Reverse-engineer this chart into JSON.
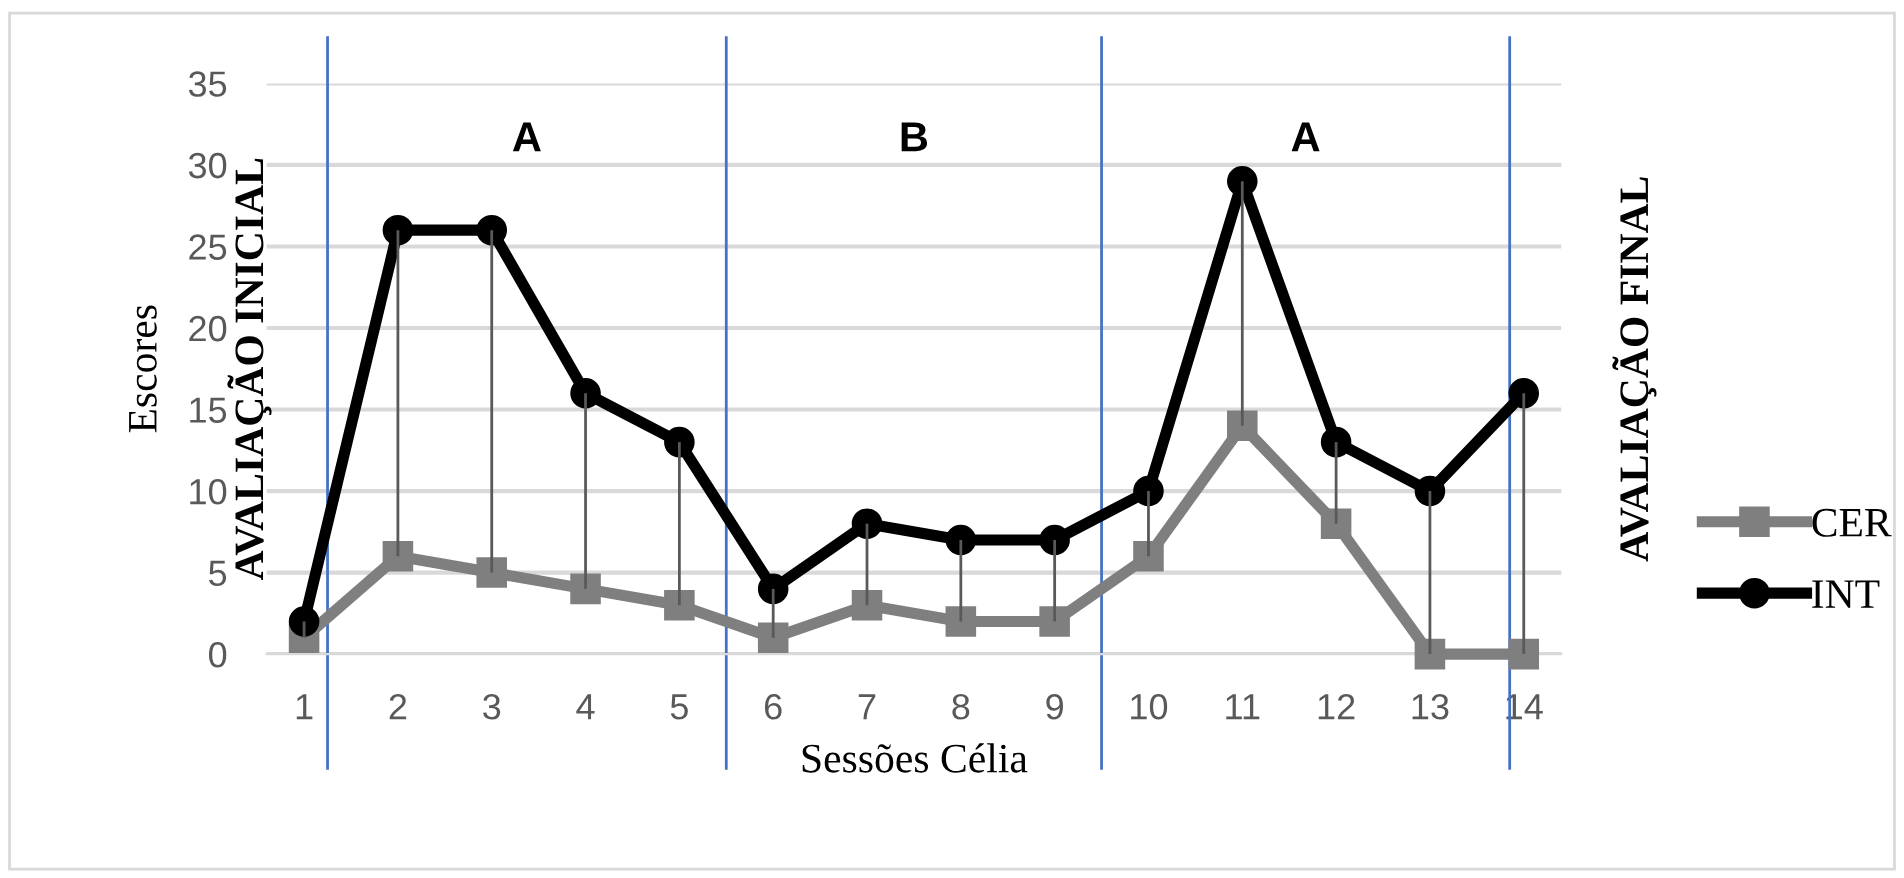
{
  "chart_data": {
    "type": "line",
    "xlabel": "Sessões Célia",
    "ylabel": "Escores",
    "x": [
      1,
      2,
      3,
      4,
      5,
      6,
      7,
      8,
      9,
      10,
      11,
      12,
      13,
      14
    ],
    "series": [
      {
        "name": "CER",
        "color": "#7f7f7f",
        "marker": "square",
        "values": [
          1,
          6,
          5,
          4,
          3,
          1,
          3,
          2,
          2,
          6,
          14,
          8,
          0,
          0
        ],
        "errors": [
          [
            1,
            2
          ],
          [
            6,
            26
          ],
          [
            5,
            26
          ],
          [
            4,
            16
          ],
          [
            3,
            13
          ],
          [
            1,
            4
          ],
          [
            3,
            8
          ],
          [
            2,
            7
          ],
          [
            2,
            7
          ],
          [
            6,
            10
          ],
          [
            14,
            29
          ],
          [
            8,
            13
          ],
          [
            0,
            10
          ],
          [
            0,
            16
          ]
        ]
      },
      {
        "name": "INT",
        "color": "#000000",
        "marker": "circle",
        "values": [
          2,
          26,
          26,
          16,
          13,
          4,
          8,
          7,
          7,
          10,
          29,
          13,
          10,
          16
        ]
      }
    ],
    "xlim": [
      0.6,
      14.4
    ],
    "xticks": [
      1,
      2,
      3,
      4,
      5,
      6,
      7,
      8,
      9,
      10,
      11,
      12,
      13,
      14
    ],
    "ylim": [
      0,
      35
    ],
    "yticks": [
      0,
      5,
      10,
      15,
      20,
      25,
      30,
      35
    ],
    "ref_lines": [
      {
        "axis": "x",
        "value": 1.25,
        "label": "AVALIAÇÃO INICIAL",
        "color": "#4472c4"
      },
      {
        "axis": "x",
        "value": 5.5,
        "label": null,
        "color": "#4472c4"
      },
      {
        "axis": "x",
        "value": 9.5,
        "label": null,
        "color": "#4472c4"
      },
      {
        "axis": "x",
        "value": 13.85,
        "label": "AVALIAÇÃO FINAL",
        "color": "#4472c4"
      }
    ],
    "annotations": [
      "A",
      "B",
      "A"
    ],
    "grid": "y",
    "legend": "right",
    "line_style": "solid"
  }
}
